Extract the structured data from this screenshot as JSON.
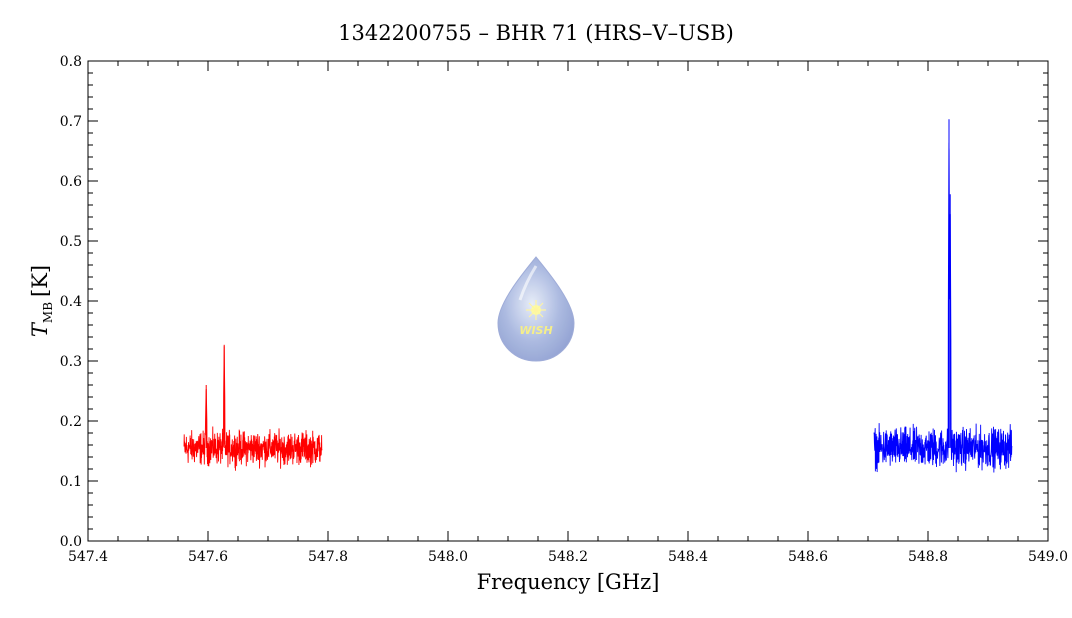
{
  "chart_data": {
    "type": "line",
    "title": "1342200755 – BHR 71 (HRS–V–USB)",
    "xlabel": "Frequency [GHz]",
    "ylabel": {
      "symbol": "T",
      "subscript": "MB",
      "unit": "[K]"
    },
    "xlim": [
      547.4,
      549.0
    ],
    "ylim": [
      0.0,
      0.8
    ],
    "xticks": [
      "547.4",
      "547.6",
      "547.8",
      "548.0",
      "548.2",
      "548.4",
      "548.6",
      "548.8",
      "549.0"
    ],
    "yticks": [
      "0.0",
      "0.1",
      "0.2",
      "0.3",
      "0.4",
      "0.5",
      "0.6",
      "0.7",
      "0.8"
    ],
    "grid": false,
    "series": [
      {
        "color": "#ff0000",
        "x_range": [
          547.56,
          547.79
        ],
        "baseline": 0.155,
        "noise_amplitude": 0.025,
        "peaks": [
          {
            "x": 547.597,
            "y": 0.26
          },
          {
            "x": 547.627,
            "y": 0.327
          }
        ]
      },
      {
        "color": "#0000ff",
        "x_range": [
          548.71,
          548.94
        ],
        "baseline": 0.155,
        "noise_amplitude": 0.03,
        "peaks": [
          {
            "x": 548.835,
            "y": 0.703
          },
          {
            "x": 548.837,
            "y": 0.578
          }
        ]
      }
    ]
  },
  "logo": {
    "text": "WISH"
  }
}
